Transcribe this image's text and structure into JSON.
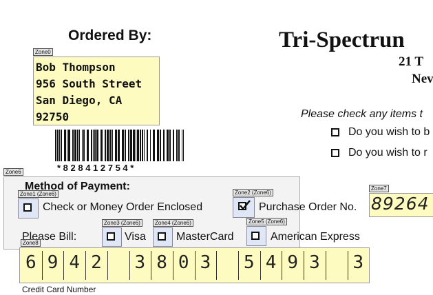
{
  "ordered_by": {
    "heading": "Ordered By:",
    "lines": [
      "Bob Thompson",
      "956 South Street",
      "San Diego, CA",
      "92750"
    ]
  },
  "barcode_text": "* 8 2 8 4 1 2 7 5 4 *",
  "company": {
    "name": "Tri-Spectrun",
    "address": [
      "21 T",
      "Nev"
    ]
  },
  "checks": {
    "prompt": "Please check any items t",
    "items": [
      "Do you wish to b",
      "Do you wish to r"
    ]
  },
  "payment": {
    "heading": "Method of Payment:",
    "check_option": "Check or Money Order Enclosed",
    "po_option": "Purchase Order No.",
    "po_number": "89264",
    "bill_label": "Please Bill:",
    "cards": [
      "Visa",
      "MasterCard",
      "American Express"
    ],
    "card_number_groups": [
      "6942",
      "3803",
      "5493",
      "3"
    ],
    "card_number_label": "Credit Card Number"
  },
  "zones": [
    "Zone0",
    "Zone6",
    "Zone1 (Zone6)",
    "Zone2 (Zone6)",
    "Zone7",
    "Zone3 (Zone6)",
    "Zone4 (Zone6)",
    "Zone5 (Zone6)",
    "Zone8"
  ]
}
